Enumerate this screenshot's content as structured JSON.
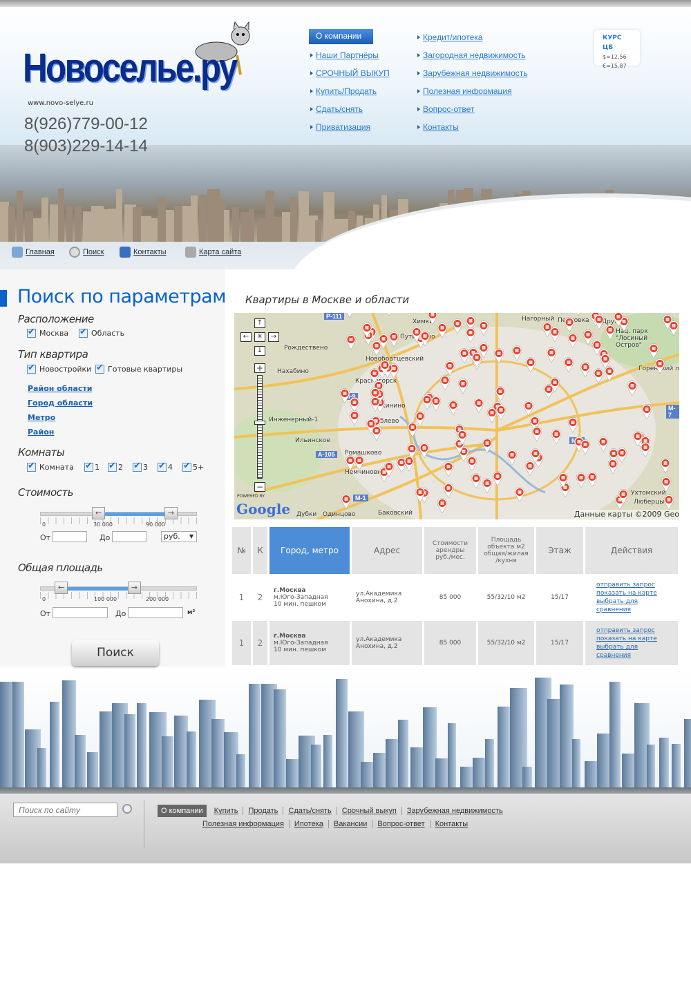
{
  "header": {
    "logo": "Новоселье.ру",
    "url": "www.novo-selye.ru",
    "phones": [
      "8(926)779-00-12",
      "8(903)229-14-14"
    ]
  },
  "nav": {
    "col1": [
      "О компании",
      "Наши Партнёры",
      "СРОЧНЫЙ ВЫКУП",
      "Купить/Продать",
      "Сдать/снять",
      "Приватизация"
    ],
    "col2": [
      "Кредит/ипотека",
      "Загородная недвижимость",
      "Зарубежная недвижимость",
      "Полезная информация",
      "Вопрос-ответ",
      "Контакты"
    ],
    "active": "О компании"
  },
  "kurs": {
    "title": "КУРС ЦБ",
    "usd": "$=12,56",
    "eur": "€=15,87"
  },
  "subnav": [
    {
      "label": "Главная",
      "icon": "home-icon"
    },
    {
      "label": "Поиск",
      "icon": "search-icon"
    },
    {
      "label": "Контакты",
      "icon": "phone-icon"
    },
    {
      "label": "Карта сайта",
      "icon": "sitemap-icon"
    }
  ],
  "search": {
    "title": "Поиск по параметрам",
    "location": {
      "label": "Расположение",
      "options": [
        {
          "label": "Москва",
          "checked": true
        },
        {
          "label": "Область",
          "checked": true
        }
      ]
    },
    "type": {
      "label": "Тип квартира",
      "options": [
        {
          "label": "Новостройки",
          "checked": true
        },
        {
          "label": "Готовые квартиры",
          "checked": true
        }
      ]
    },
    "links": [
      "Район области",
      "Город области",
      "Метро",
      "Район"
    ],
    "rooms": {
      "label": "Комнаты",
      "options": [
        {
          "label": "Комната",
          "checked": true
        },
        {
          "label": "1",
          "checked": true
        },
        {
          "label": "2",
          "checked": true
        },
        {
          "label": "3",
          "checked": true
        },
        {
          "label": "4",
          "checked": true
        },
        {
          "label": "5+",
          "checked": true
        }
      ]
    },
    "price": {
      "label": "Стоимость",
      "ticks": [
        "0",
        "30 000",
        "90 000"
      ],
      "from_label": "От",
      "to_label": "До",
      "from": "",
      "to": "",
      "currency": "руб.",
      "range": [
        30000,
        90000
      ]
    },
    "area": {
      "label": "Общая площадь",
      "ticks": [
        "0",
        "100 000",
        "200 000"
      ],
      "from_label": "От",
      "to_label": "До",
      "from": "",
      "to": "",
      "unit": "м²",
      "range": [
        25000,
        160000
      ]
    },
    "button": "Поиск"
  },
  "map": {
    "title": "Квартиры в Москве и области",
    "labels": [
      "Химки",
      "Нагорный",
      "Перловка",
      "Дружба",
      "Нац. парк \"Лосиный Остров\"",
      "Рождествено",
      "Путилково",
      "Новобратцевский",
      "Нахабино",
      "Красногорск",
      "Горенский лесопарк",
      "Инженерный-1",
      "Мякинино",
      "Рублево",
      "Ильинское",
      "Ромашково",
      "Немчиновка",
      "Дубки",
      "Одинцово",
      "Баковский",
      "Ухтомский",
      "Люберцы"
    ],
    "roads": [
      "P-111",
      "M-9",
      "A-105",
      "M-1",
      "M-7",
      "M-7"
    ],
    "powered": "POWERED BY",
    "google": "Google",
    "copyright": "Данные карты ©2009 Geo"
  },
  "table": {
    "headers": [
      "№",
      "К",
      "Город, метро",
      "Адрес",
      "Стоимости арендры руб./мес.",
      "Площадь объекта м2 общая/жилая /кухня",
      "Этаж",
      "Действия"
    ],
    "rows": [
      {
        "n": "1",
        "k": "2",
        "city": "г.Москва",
        "metro": "м.Юго-Западная",
        "walk": "10 мин. пешком",
        "address": "ул.Академика Анохина, д.2",
        "price": "85 000",
        "area": "55/32/10 м2",
        "floor": "15/17"
      },
      {
        "n": "1",
        "k": "2",
        "city": "г.Москва",
        "metro": "м.Юго-Западная",
        "walk": "10 мин. пешком",
        "address": "ул.Академика Анохина, д.2",
        "price": "85 000",
        "area": "55/32/10 м2",
        "floor": "15/17"
      }
    ],
    "actions": [
      "отправить запрос",
      "показать на карте",
      "выбрать для сравнения"
    ]
  },
  "footer": {
    "search_placeholder": "Поиск по сайту",
    "row1": [
      "О компании",
      "Купить",
      "Продать",
      "Сдать/снять",
      "Срочный выкуп",
      "Зарубежная недвижимость"
    ],
    "row2": [
      "Полезная информация",
      "Ипотека",
      "Вакансии",
      "Вопрос-ответ",
      "Контакты"
    ]
  },
  "colors": {
    "brand": "#0a63c9",
    "accent": "#4d8cd6",
    "marker": "#e8402a"
  }
}
